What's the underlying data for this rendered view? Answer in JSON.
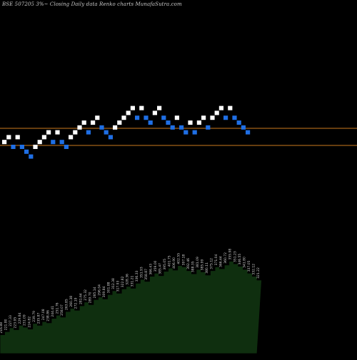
{
  "header": {
    "title": "BSE 507205 3%~  Closing Daily data  Renko  charts MunafaSutra.com"
  },
  "colors": {
    "background": "#000000",
    "up_brick": "#ffffff",
    "down_brick": "#1f6fe5",
    "reference_line": "#cc7a1e",
    "area_fill": "#0f2f0f",
    "area_stroke": "#000000",
    "label": "#d0d0d0"
  },
  "chart_data": {
    "type": "renko",
    "brick_size_label": "3%",
    "bricks": [
      {
        "dir": "up",
        "value": 244.77
      },
      {
        "dir": "up",
        "value": 252.0
      },
      {
        "dir": "down",
        "value": 244.77
      },
      {
        "dir": "up",
        "value": 252.0
      },
      {
        "dir": "down",
        "value": 244.77
      },
      {
        "dir": "down",
        "value": 237.53
      },
      {
        "dir": "down",
        "value": 230.29
      },
      {
        "dir": "up",
        "value": 237.53
      },
      {
        "dir": "up",
        "value": 244.77
      },
      {
        "dir": "up",
        "value": 252.0
      },
      {
        "dir": "up",
        "value": 259.24
      },
      {
        "dir": "down",
        "value": 252.0
      },
      {
        "dir": "up",
        "value": 259.24
      },
      {
        "dir": "down",
        "value": 252.0
      },
      {
        "dir": "down",
        "value": 244.77
      },
      {
        "dir": "up",
        "value": 252.0
      },
      {
        "dir": "up",
        "value": 259.24
      },
      {
        "dir": "up",
        "value": 266.48
      },
      {
        "dir": "up",
        "value": 273.72
      },
      {
        "dir": "down",
        "value": 266.48
      },
      {
        "dir": "up",
        "value": 273.72
      },
      {
        "dir": "up",
        "value": 280.96
      },
      {
        "dir": "down",
        "value": 273.72
      },
      {
        "dir": "down",
        "value": 266.48
      },
      {
        "dir": "down",
        "value": 259.24
      },
      {
        "dir": "up",
        "value": 266.48
      },
      {
        "dir": "up",
        "value": 273.72
      },
      {
        "dir": "up",
        "value": 280.96
      },
      {
        "dir": "up",
        "value": 288.2
      },
      {
        "dir": "up",
        "value": 295.44
      },
      {
        "dir": "down",
        "value": 288.2
      },
      {
        "dir": "up",
        "value": 295.44
      },
      {
        "dir": "down",
        "value": 288.2
      },
      {
        "dir": "down",
        "value": 280.96
      },
      {
        "dir": "up",
        "value": 288.2
      },
      {
        "dir": "up",
        "value": 295.44
      },
      {
        "dir": "down",
        "value": 288.2
      },
      {
        "dir": "down",
        "value": 280.96
      },
      {
        "dir": "down",
        "value": 273.72
      },
      {
        "dir": "up",
        "value": 280.96
      },
      {
        "dir": "down",
        "value": 273.72
      },
      {
        "dir": "down",
        "value": 266.48
      },
      {
        "dir": "up",
        "value": 273.72
      },
      {
        "dir": "down",
        "value": 266.48
      },
      {
        "dir": "up",
        "value": 273.72
      },
      {
        "dir": "up",
        "value": 280.96
      },
      {
        "dir": "down",
        "value": 273.72
      },
      {
        "dir": "up",
        "value": 280.96
      },
      {
        "dir": "up",
        "value": 288.2
      },
      {
        "dir": "up",
        "value": 295.44
      },
      {
        "dir": "down",
        "value": 288.2
      },
      {
        "dir": "up",
        "value": 295.44
      },
      {
        "dir": "down",
        "value": 288.2
      },
      {
        "dir": "down",
        "value": 280.96
      },
      {
        "dir": "down",
        "value": 273.72
      },
      {
        "dir": "down",
        "value": 266.48
      }
    ],
    "reference_lines": [
      255.0,
      230.0
    ],
    "y_range": [
      200,
      360
    ],
    "price_area": {
      "values": [
        210,
        215,
        221,
        218,
        225,
        222,
        219,
        228,
        225,
        231,
        229,
        236,
        241,
        238,
        247,
        252,
        249,
        256,
        262,
        258,
        266,
        270,
        267,
        274,
        280,
        276,
        283,
        287,
        284,
        292,
        298,
        295,
        303,
        308,
        304,
        311,
        316,
        313,
        320,
        318,
        312,
        307,
        314,
        310,
        305,
        312,
        318,
        315,
        321,
        327,
        323,
        319,
        314,
        308,
        303,
        297
      ],
      "ylim": [
        180,
        340
      ],
      "labels": [
        "216.88",
        "221.80",
        "227.33",
        "223.95",
        "229.84",
        "231.09",
        "224.82",
        "239.79",
        "235.87",
        "247.08",
        "238.86",
        "244.41",
        "251.76",
        "258.07",
        "263.85",
        "260.38",
        "272.19",
        "281.64",
        "275.32",
        "289.70",
        "285.14",
        "296.04",
        "309.84",
        "301.88",
        "312.38",
        "317.93",
        "322.82",
        "328.36",
        "331.21",
        "336.33",
        "351.93",
        "358.87",
        "366.43",
        "359.00",
        "385.47",
        "395.05",
        "401.75",
        "406.90",
        "402.55",
        "397.18",
        "392.46",
        "388.35",
        "381.09",
        "385.99",
        "380.11",
        "375.12",
        "371.04",
        "366.44",
        "360.72",
        "355.98",
        "351.23",
        "346.55",
        "341.80",
        "337.05",
        "332.12",
        "321.22"
      ]
    }
  }
}
